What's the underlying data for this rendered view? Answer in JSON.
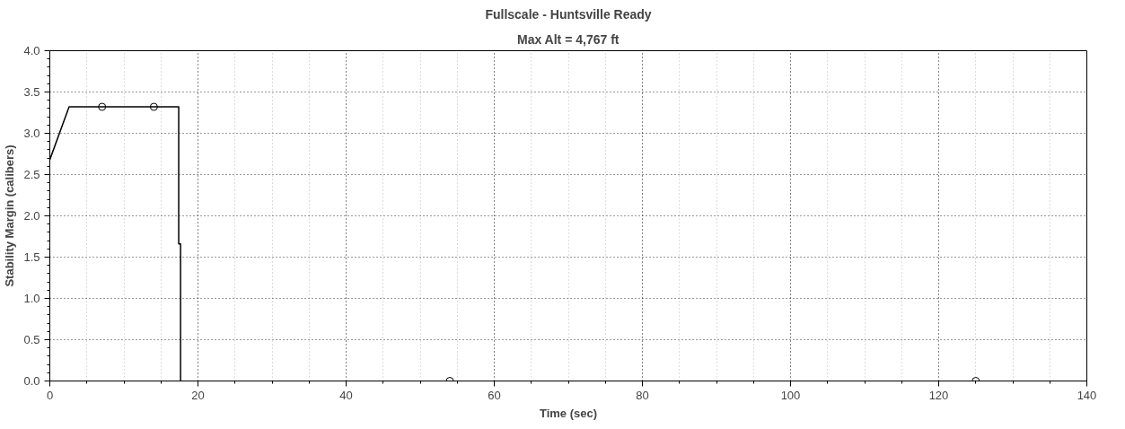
{
  "chart_data": {
    "type": "line",
    "title": "Fullscale - Huntsville Ready",
    "subtitle": "Max Alt = 4,767 ft",
    "xlabel": "Time (sec)",
    "ylabel": "Stability Margin (calibers)",
    "xlim": [
      0,
      140
    ],
    "xticks": [
      0,
      20,
      40,
      60,
      80,
      100,
      120,
      140
    ],
    "ylim": [
      0,
      4
    ],
    "yticks": [
      {
        "value": 0,
        "label": "0.0"
      },
      {
        "value": 0.5,
        "label": "0.5"
      },
      {
        "value": 1,
        "label": "1.0"
      },
      {
        "value": 1.5,
        "label": "1.5"
      },
      {
        "value": 2,
        "label": "2.0"
      },
      {
        "value": 2.5,
        "label": "2.5"
      },
      {
        "value": 3,
        "label": "3.0"
      },
      {
        "value": 3.5,
        "label": "3.5"
      },
      {
        "value": 4,
        "label": "4.0"
      }
    ],
    "grid": true,
    "line_style": "solid",
    "series": [
      {
        "color": "#000000",
        "marker": "none",
        "x": [
          0,
          2.6,
          17.4,
          17.4,
          17.65,
          17.65
        ],
        "values": [
          2.68,
          3.32,
          3.32,
          1.66,
          1.66,
          0
        ]
      },
      {
        "type": "scatter",
        "color": "#000000",
        "marker": "circle",
        "x": [
          7.05,
          14.05,
          54,
          125
        ],
        "values": [
          3.32,
          3.32,
          0,
          0
        ]
      }
    ]
  }
}
